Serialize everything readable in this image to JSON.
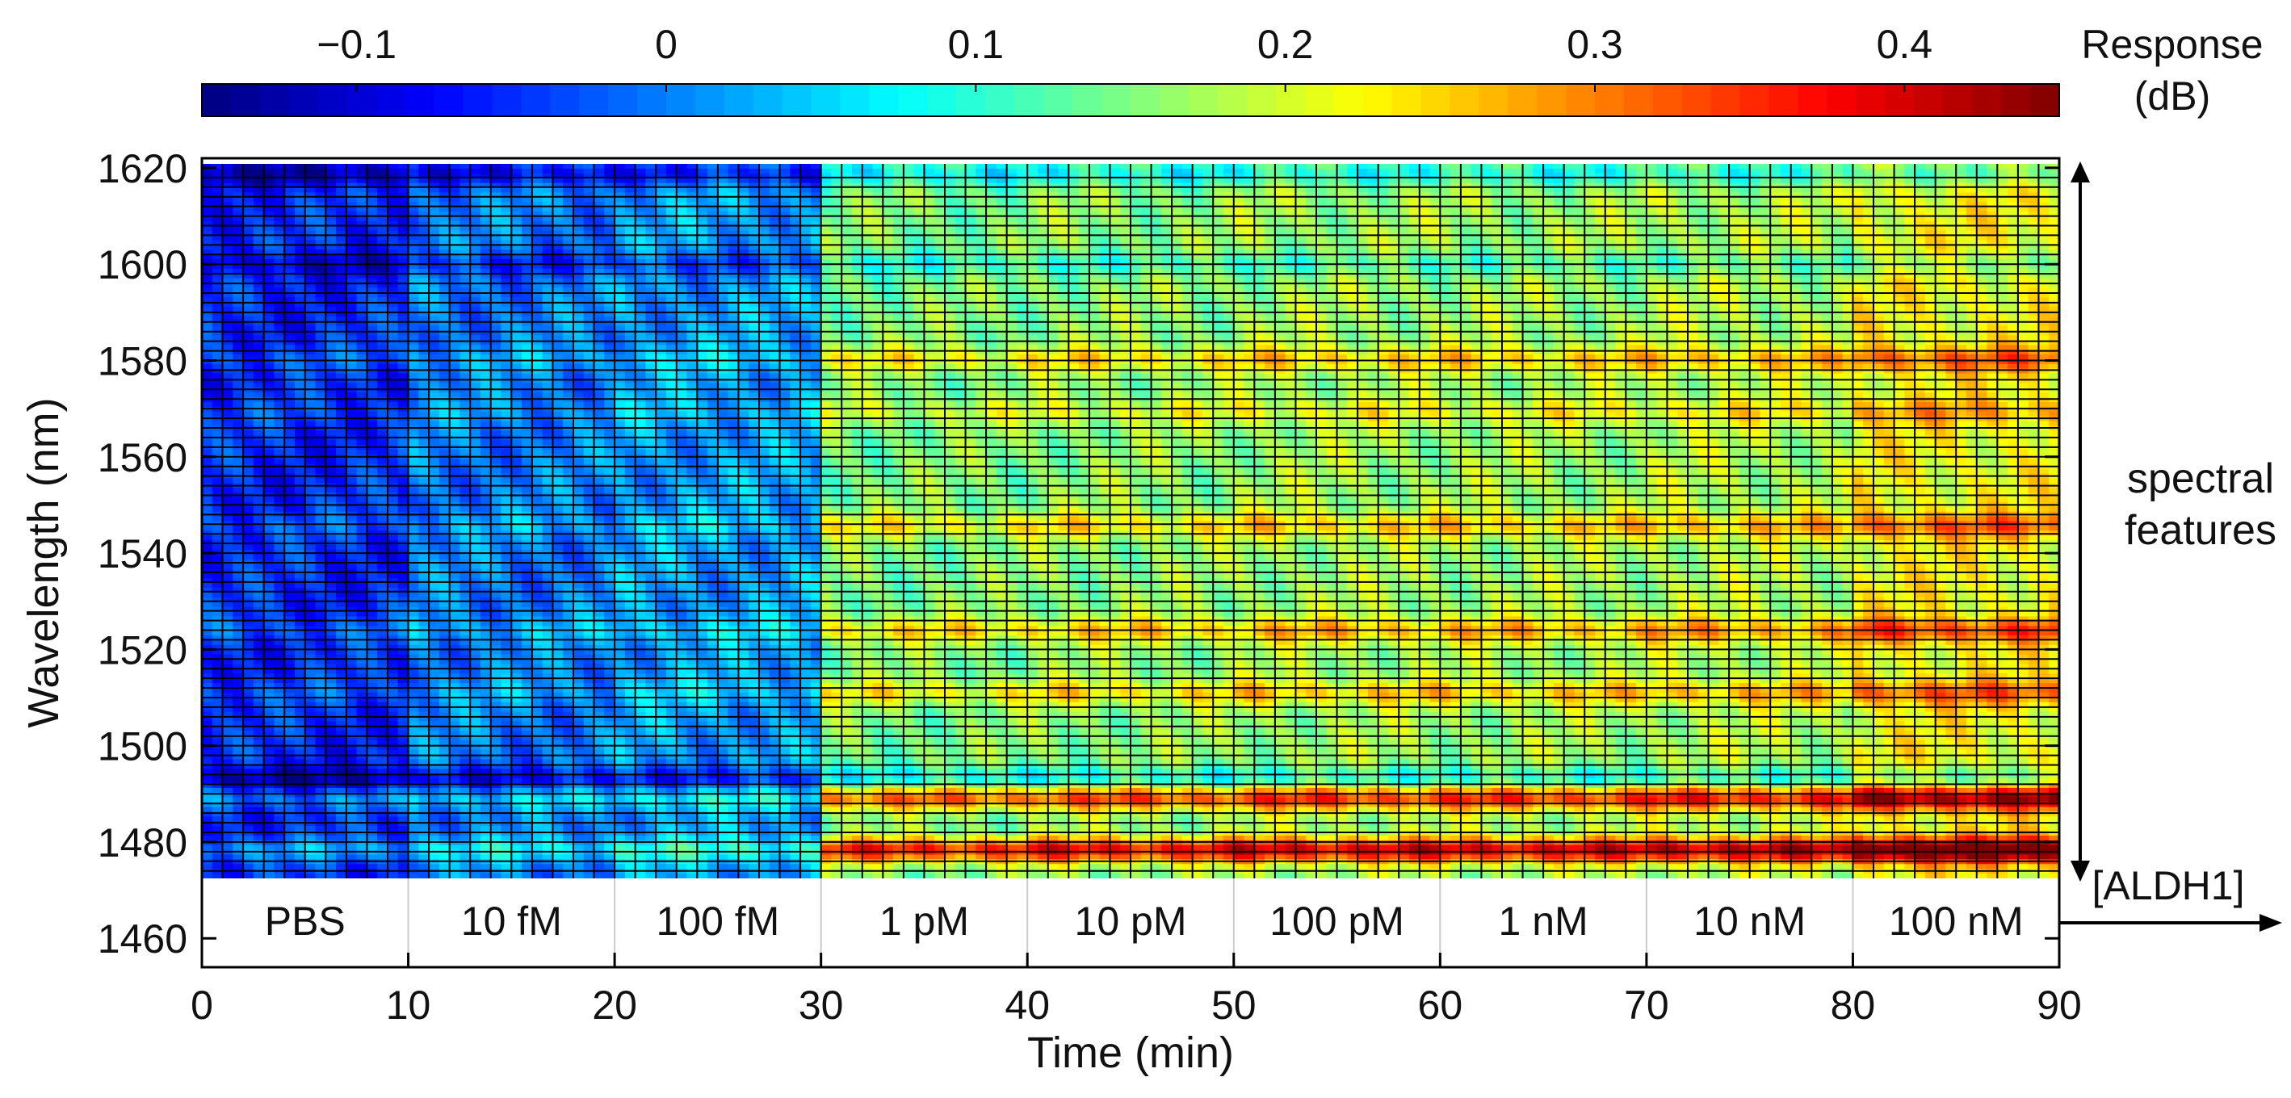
{
  "chart_data": {
    "type": "heatmap",
    "xlabel": "Time (min)",
    "ylabel": "Wavelength (nm)",
    "xlim": [
      0,
      90
    ],
    "ylim": [
      1454,
      1622
    ],
    "heatmap_ylim": [
      1469,
      1619
    ],
    "x_ticks": [
      0,
      10,
      20,
      30,
      40,
      50,
      60,
      70,
      80,
      90
    ],
    "y_ticks": [
      1460,
      1480,
      1500,
      1520,
      1540,
      1560,
      1580,
      1600,
      1620
    ],
    "colorbar": {
      "label_line1": "Response",
      "label_line2": "(dB)",
      "range": [
        -0.15,
        0.45
      ],
      "ticks": [
        -0.1,
        0,
        0.1,
        0.2,
        0.3,
        0.4
      ],
      "tick_labels": [
        "−0.1",
        "0",
        "0.1",
        "0.2",
        "0.3",
        "0.4"
      ],
      "colormap": "jet"
    },
    "concentration_segments": [
      {
        "label": "PBS",
        "start": 0,
        "end": 10
      },
      {
        "label": "10 fM",
        "start": 10,
        "end": 20
      },
      {
        "label": "100 fM",
        "start": 20,
        "end": 30
      },
      {
        "label": "1 pM",
        "start": 30,
        "end": 40
      },
      {
        "label": "10 pM",
        "start": 40,
        "end": 50
      },
      {
        "label": "100 pM",
        "start": 50,
        "end": 60
      },
      {
        "label": "1 nM",
        "start": 60,
        "end": 70
      },
      {
        "label": "10 nM",
        "start": 70,
        "end": 80
      },
      {
        "label": "100 nM",
        "start": 80,
        "end": 90
      }
    ],
    "spectral_features_label_line1": "spectral",
    "spectral_features_label_line2": "features",
    "aldh1_label": "[ALDH1]",
    "response_by_segment": [
      {
        "segment": "PBS",
        "base": -0.05
      },
      {
        "segment": "10 fM",
        "base": 0.0
      },
      {
        "segment": "100 fM",
        "base": 0.02
      },
      {
        "segment": "1 pM",
        "base": 0.15
      },
      {
        "segment": "10 pM",
        "base": 0.16
      },
      {
        "segment": "100 pM",
        "base": 0.17
      },
      {
        "segment": "1 nM",
        "base": 0.17
      },
      {
        "segment": "10 nM",
        "base": 0.18
      },
      {
        "segment": "100 nM",
        "base": 0.22
      }
    ],
    "spectral_bands": [
      {
        "wavelength": 1475,
        "amplitude": 0.28
      },
      {
        "wavelength": 1486,
        "amplitude": 0.22
      },
      {
        "wavelength": 1490,
        "amplitude": -0.08
      },
      {
        "wavelength": 1508,
        "amplitude": 0.1
      },
      {
        "wavelength": 1521,
        "amplitude": 0.12
      },
      {
        "wavelength": 1543,
        "amplitude": 0.1
      },
      {
        "wavelength": 1567,
        "amplitude": 0.06
      },
      {
        "wavelength": 1578,
        "amplitude": 0.1
      },
      {
        "wavelength": 1598,
        "amplitude": -0.05
      },
      {
        "wavelength": 1617,
        "amplitude": -0.08
      }
    ]
  }
}
